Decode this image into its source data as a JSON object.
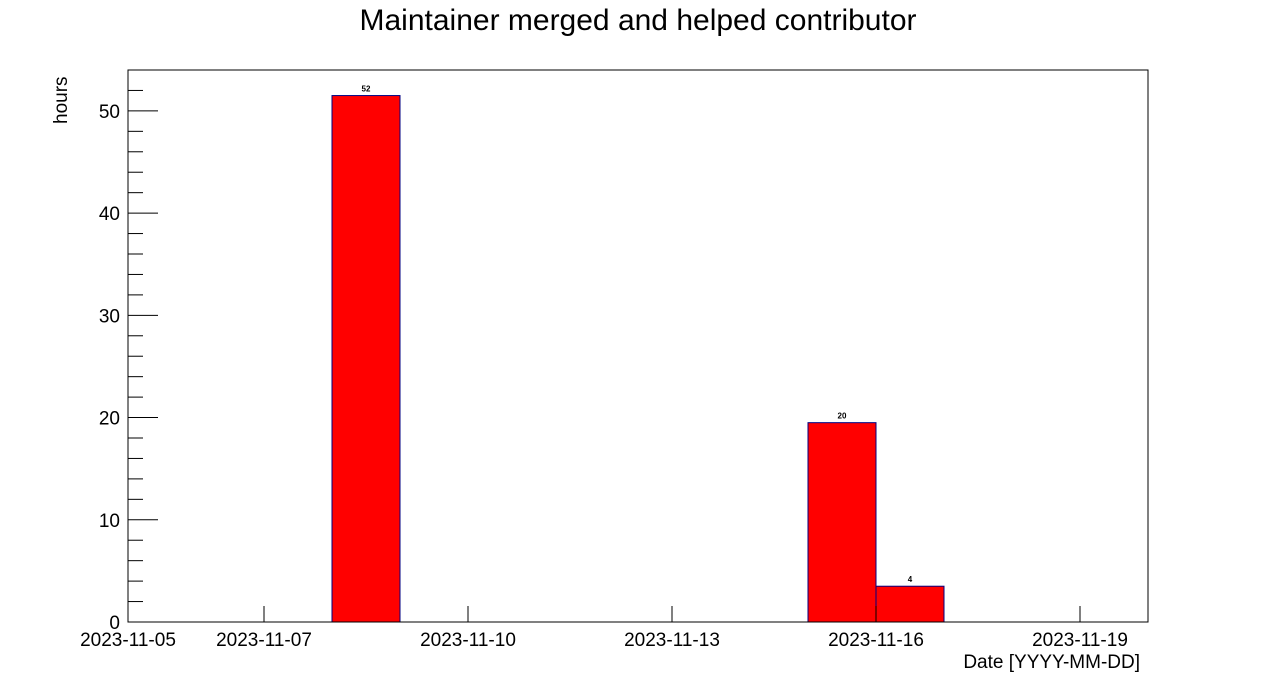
{
  "chart_data": {
    "type": "bar",
    "title": "Maintainer merged and helped contributor",
    "xlabel": "Date [YYYY-MM-DD]",
    "ylabel": "hours",
    "x_range": [
      "2023-11-05",
      "2023-11-20"
    ],
    "ylim": [
      0,
      54
    ],
    "x_ticks": [
      "2023-11-05",
      "2023-11-07",
      "2023-11-10",
      "2023-11-13",
      "2023-11-16",
      "2023-11-19"
    ],
    "y_ticks": [
      0,
      10,
      20,
      30,
      40,
      50
    ],
    "bars": [
      {
        "start": "2023-11-08",
        "end": "2023-11-09",
        "value": 51.5,
        "label": "52"
      },
      {
        "start": "2023-11-15",
        "end": "2023-11-16",
        "value": 19.5,
        "label": "20"
      },
      {
        "start": "2023-11-16",
        "end": "2023-11-17",
        "value": 3.5,
        "label": "4"
      }
    ],
    "bar_fill": "#ff0000",
    "bar_stroke": "#000080",
    "grid": false
  }
}
